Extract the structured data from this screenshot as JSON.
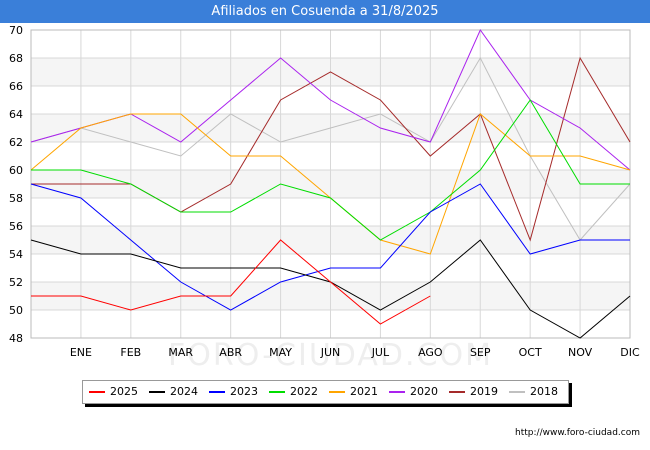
{
  "chart_data": {
    "type": "line",
    "title": "Afiliados en Cosuenda a 31/8/2025",
    "categories": [
      "",
      "ENE",
      "FEB",
      "MAR",
      "ABR",
      "MAY",
      "JUN",
      "JUL",
      "AGO",
      "SEP",
      "OCT",
      "NOV",
      "DIC"
    ],
    "ylim": [
      48,
      70
    ],
    "yticks": [
      48,
      50,
      52,
      54,
      56,
      58,
      60,
      62,
      64,
      66,
      68,
      70
    ],
    "grid": true,
    "legend_position": "bottom",
    "series": [
      {
        "name": "2025",
        "color": "#ff0000",
        "values": [
          51,
          51,
          50,
          51,
          51,
          55,
          52,
          49,
          51,
          null,
          null,
          null,
          null
        ]
      },
      {
        "name": "2024",
        "color": "#000000",
        "values": [
          55,
          54,
          54,
          53,
          53,
          53,
          52,
          50,
          52,
          55,
          50,
          48,
          51
        ]
      },
      {
        "name": "2023",
        "color": "#0000ff",
        "values": [
          59,
          58,
          55,
          52,
          50,
          52,
          53,
          53,
          57,
          59,
          54,
          55,
          55
        ]
      },
      {
        "name": "2022",
        "color": "#00dd00",
        "values": [
          60,
          60,
          59,
          57,
          57,
          59,
          58,
          55,
          57,
          60,
          65,
          59,
          59
        ]
      },
      {
        "name": "2021",
        "color": "#ffa500",
        "values": [
          60,
          63,
          64,
          64,
          61,
          61,
          58,
          55,
          54,
          64,
          61,
          61,
          60
        ]
      },
      {
        "name": "2020",
        "color": "#aa22ee",
        "values": [
          62,
          63,
          64,
          62,
          65,
          68,
          65,
          63,
          62,
          70,
          65,
          63,
          60
        ]
      },
      {
        "name": "2019",
        "color": "#a52a2a",
        "values": [
          59,
          59,
          59,
          57,
          59,
          65,
          67,
          65,
          61,
          64,
          55,
          68,
          62
        ]
      },
      {
        "name": "2018",
        "color": "#c0c0c0",
        "values": [
          62,
          63,
          62,
          61,
          64,
          62,
          63,
          64,
          62,
          68,
          61,
          55,
          59
        ]
      }
    ]
  },
  "watermark": "FORO-CIUDAD.COM",
  "footer_url": "http://www.foro-ciudad.com"
}
